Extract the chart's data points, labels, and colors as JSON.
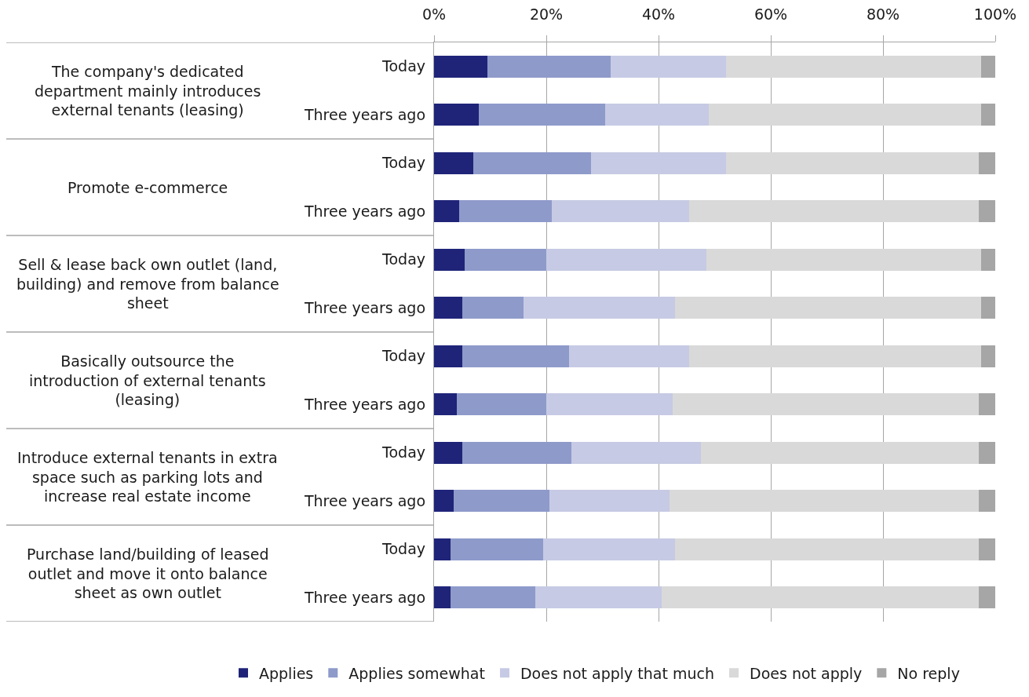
{
  "chart_data": {
    "type": "bar",
    "orientation": "horizontal",
    "stacked": true,
    "categories": [
      "Today",
      "Three years ago",
      "Today",
      "Three years ago",
      "Today",
      "Three years ago",
      "Today",
      "Three years ago",
      "Today",
      "Three years ago",
      "Today",
      "Three years ago"
    ],
    "series": [
      {
        "name": "Applies",
        "color": "#1f2479",
        "values": [
          9.5,
          8,
          7,
          4.5,
          5.5,
          5,
          5,
          4,
          5,
          3.5,
          3,
          3
        ]
      },
      {
        "name": "Applies somewhat",
        "color": "#8e9aca",
        "values": [
          22,
          22.5,
          21,
          16.5,
          14.5,
          11,
          19,
          16,
          19.5,
          17,
          16.5,
          15
        ]
      },
      {
        "name": "Does not apply that much",
        "color": "#c6cae4",
        "values": [
          20.5,
          18.5,
          24,
          24.5,
          28.5,
          27,
          21.5,
          22.5,
          23,
          21.5,
          23.5,
          22.5
        ]
      },
      {
        "name": "Does not apply",
        "color": "#d9d9d9",
        "values": [
          45.5,
          48.5,
          45,
          51.5,
          49,
          54.5,
          52,
          54.5,
          49.5,
          55,
          54,
          56.5
        ]
      },
      {
        "name": "No reply",
        "color": "#a6a6a6",
        "values": [
          2.5,
          2.5,
          3,
          3,
          2.5,
          2.5,
          2.5,
          3,
          3,
          3,
          3,
          3
        ]
      }
    ],
    "xlim": [
      0,
      100
    ],
    "xticks": [
      {
        "value": 0,
        "label": "0%"
      },
      {
        "value": 20,
        "label": "20%"
      },
      {
        "value": 40,
        "label": "40%"
      },
      {
        "value": 60,
        "label": "60%"
      },
      {
        "value": 80,
        "label": "80%"
      },
      {
        "value": 100,
        "label": "100%"
      }
    ],
    "grid": "x",
    "legend": "bottom",
    "annotations": [
      "The company's dedicated department mainly introduces external tenants (leasing)",
      "Promote e-commerce",
      "Sell & lease back own outlet (land, building) and remove from balance sheet",
      "Basically outsource the introduction of external tenants (leasing)",
      "Introduce external tenants in extra space such as parking lots and increase real estate income",
      "Purchase land/building of leased outlet and move it onto balance sheet as own outlet"
    ]
  }
}
